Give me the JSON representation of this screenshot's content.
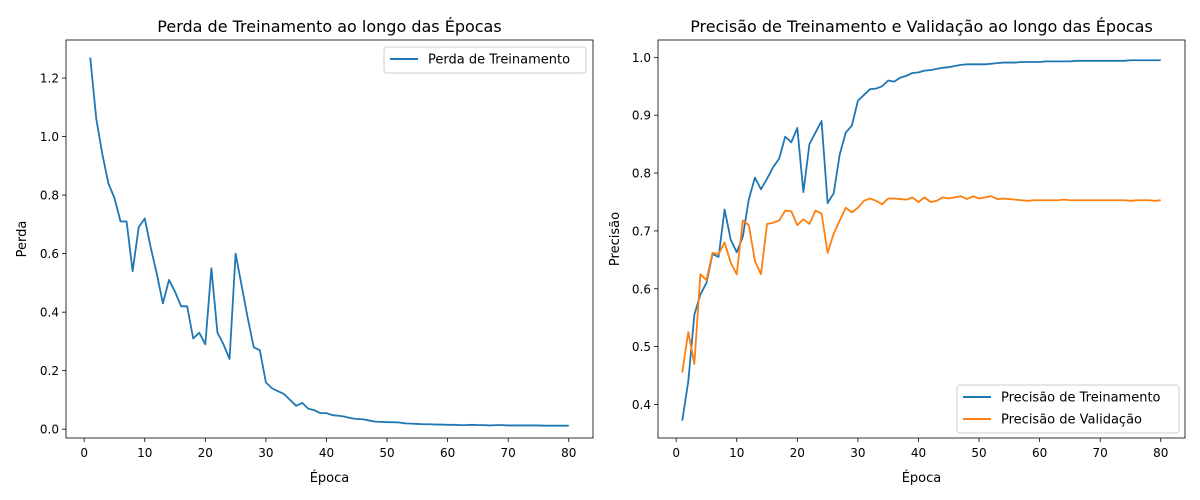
{
  "chart_data": [
    {
      "type": "line",
      "title": "Perda de Treinamento ao longo das Épocas",
      "xlabel": "Época",
      "ylabel": "Perda",
      "xlim": [
        -3,
        84
      ],
      "ylim": [
        -0.03,
        1.33
      ],
      "xticks": [
        0,
        10,
        20,
        30,
        40,
        50,
        60,
        70,
        80
      ],
      "xtick_labels": [
        "0",
        "10",
        "20",
        "30",
        "40",
        "50",
        "60",
        "70",
        "80"
      ],
      "yticks": [
        0.0,
        0.2,
        0.4,
        0.6,
        0.8,
        1.0,
        1.2
      ],
      "ytick_labels": [
        "0.0",
        "0.2",
        "0.4",
        "0.6",
        "0.8",
        "1.0",
        "1.2"
      ],
      "legend_position": "top-right",
      "grid": false,
      "series": [
        {
          "name": "Perda de Treinamento",
          "color": "#1f77b4",
          "x": [
            1,
            2,
            3,
            4,
            5,
            6,
            7,
            8,
            9,
            10,
            11,
            12,
            13,
            14,
            15,
            16,
            17,
            18,
            19,
            20,
            21,
            22,
            23,
            24,
            25,
            26,
            27,
            28,
            29,
            30,
            31,
            32,
            33,
            34,
            35,
            36,
            37,
            38,
            39,
            40,
            41,
            42,
            43,
            44,
            45,
            46,
            47,
            48,
            49,
            50,
            51,
            52,
            53,
            54,
            55,
            56,
            57,
            58,
            59,
            60,
            61,
            62,
            63,
            64,
            65,
            66,
            67,
            68,
            69,
            70,
            71,
            72,
            73,
            74,
            75,
            76,
            77,
            78,
            79,
            80
          ],
          "values": [
            1.27,
            1.06,
            0.94,
            0.84,
            0.79,
            0.71,
            0.71,
            0.54,
            0.69,
            0.72,
            0.62,
            0.53,
            0.43,
            0.51,
            0.47,
            0.42,
            0.42,
            0.31,
            0.33,
            0.29,
            0.55,
            0.33,
            0.29,
            0.24,
            0.6,
            0.49,
            0.38,
            0.28,
            0.27,
            0.16,
            0.14,
            0.13,
            0.12,
            0.1,
            0.08,
            0.09,
            0.07,
            0.065,
            0.055,
            0.055,
            0.048,
            0.046,
            0.043,
            0.038,
            0.035,
            0.034,
            0.03,
            0.026,
            0.025,
            0.024,
            0.024,
            0.023,
            0.02,
            0.019,
            0.018,
            0.017,
            0.017,
            0.016,
            0.016,
            0.015,
            0.015,
            0.014,
            0.014,
            0.015,
            0.014,
            0.014,
            0.013,
            0.014,
            0.014,
            0.013,
            0.013,
            0.013,
            0.013,
            0.013,
            0.013,
            0.012,
            0.012,
            0.012,
            0.012,
            0.012
          ]
        }
      ]
    },
    {
      "type": "line",
      "title": "Precisão de Treinamento e Validação ao longo das Épocas",
      "xlabel": "Época",
      "ylabel": "Precisão",
      "xlim": [
        -3,
        84
      ],
      "ylim": [
        0.342,
        1.03
      ],
      "xticks": [
        0,
        10,
        20,
        30,
        40,
        50,
        60,
        70,
        80
      ],
      "xtick_labels": [
        "0",
        "10",
        "20",
        "30",
        "40",
        "50",
        "60",
        "70",
        "80"
      ],
      "yticks": [
        0.4,
        0.5,
        0.6,
        0.7,
        0.8,
        0.9,
        1.0
      ],
      "ytick_labels": [
        "0.4",
        "0.5",
        "0.6",
        "0.7",
        "0.8",
        "0.9",
        "1.0"
      ],
      "legend_position": "bottom-right",
      "grid": false,
      "series": [
        {
          "name": "Precisão de Treinamento",
          "color": "#1f77b4",
          "x": [
            1,
            2,
            3,
            4,
            5,
            6,
            7,
            8,
            9,
            10,
            11,
            12,
            13,
            14,
            15,
            16,
            17,
            18,
            19,
            20,
            21,
            22,
            23,
            24,
            25,
            26,
            27,
            28,
            29,
            30,
            31,
            32,
            33,
            34,
            35,
            36,
            37,
            38,
            39,
            40,
            41,
            42,
            43,
            44,
            45,
            46,
            47,
            48,
            49,
            50,
            51,
            52,
            53,
            54,
            55,
            56,
            57,
            58,
            59,
            60,
            61,
            62,
            63,
            64,
            65,
            66,
            67,
            68,
            69,
            70,
            71,
            72,
            73,
            74,
            75,
            76,
            77,
            78,
            79,
            80
          ],
          "values": [
            0.372,
            0.44,
            0.555,
            0.59,
            0.61,
            0.66,
            0.655,
            0.737,
            0.685,
            0.663,
            0.69,
            0.755,
            0.792,
            0.772,
            0.79,
            0.81,
            0.825,
            0.863,
            0.853,
            0.878,
            0.767,
            0.85,
            0.87,
            0.89,
            0.748,
            0.765,
            0.832,
            0.87,
            0.882,
            0.925,
            0.935,
            0.945,
            0.946,
            0.95,
            0.96,
            0.958,
            0.965,
            0.968,
            0.973,
            0.974,
            0.977,
            0.978,
            0.98,
            0.982,
            0.983,
            0.985,
            0.987,
            0.988,
            0.988,
            0.988,
            0.988,
            0.989,
            0.99,
            0.991,
            0.991,
            0.991,
            0.992,
            0.992,
            0.992,
            0.992,
            0.993,
            0.993,
            0.993,
            0.993,
            0.993,
            0.994,
            0.994,
            0.994,
            0.994,
            0.994,
            0.994,
            0.994,
            0.994,
            0.994,
            0.995,
            0.995,
            0.995,
            0.995,
            0.995,
            0.995
          ]
        },
        {
          "name": "Precisão de Validação",
          "color": "#ff7f0e",
          "x": [
            1,
            2,
            3,
            4,
            5,
            6,
            7,
            8,
            9,
            10,
            11,
            12,
            13,
            14,
            15,
            16,
            17,
            18,
            19,
            20,
            21,
            22,
            23,
            24,
            25,
            26,
            27,
            28,
            29,
            30,
            31,
            32,
            33,
            34,
            35,
            36,
            37,
            38,
            39,
            40,
            41,
            42,
            43,
            44,
            45,
            46,
            47,
            48,
            49,
            50,
            51,
            52,
            53,
            54,
            55,
            56,
            57,
            58,
            59,
            60,
            61,
            62,
            63,
            64,
            65,
            66,
            67,
            68,
            69,
            70,
            71,
            72,
            73,
            74,
            75,
            76,
            77,
            78,
            79,
            80
          ],
          "values": [
            0.455,
            0.525,
            0.47,
            0.625,
            0.615,
            0.662,
            0.66,
            0.68,
            0.645,
            0.625,
            0.718,
            0.71,
            0.648,
            0.625,
            0.712,
            0.714,
            0.718,
            0.735,
            0.734,
            0.71,
            0.72,
            0.712,
            0.735,
            0.73,
            0.662,
            0.695,
            0.718,
            0.74,
            0.732,
            0.74,
            0.752,
            0.756,
            0.752,
            0.746,
            0.756,
            0.756,
            0.755,
            0.754,
            0.758,
            0.75,
            0.758,
            0.75,
            0.752,
            0.758,
            0.756,
            0.758,
            0.76,
            0.755,
            0.76,
            0.756,
            0.758,
            0.76,
            0.755,
            0.756,
            0.755,
            0.754,
            0.753,
            0.752,
            0.753,
            0.753,
            0.753,
            0.753,
            0.753,
            0.754,
            0.753,
            0.753,
            0.753,
            0.753,
            0.753,
            0.753,
            0.753,
            0.753,
            0.753,
            0.753,
            0.752,
            0.753,
            0.753,
            0.753,
            0.752,
            0.753
          ]
        }
      ]
    }
  ]
}
